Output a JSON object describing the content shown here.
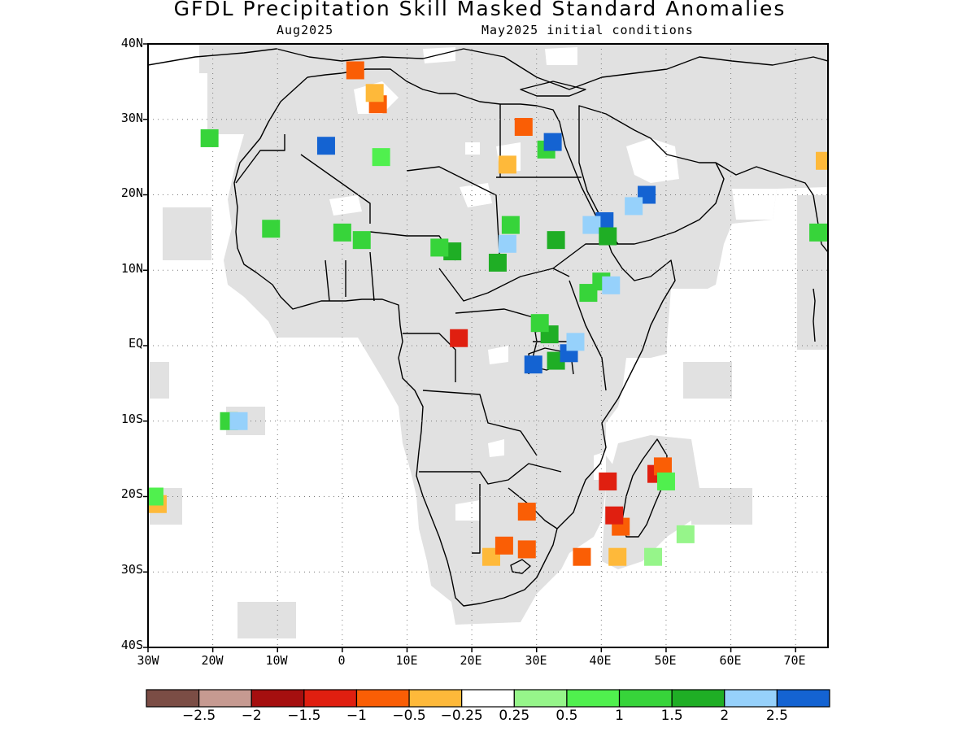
{
  "title": "GFDL Precipitation Skill Masked Standard Anomalies",
  "subtitle_left": "Aug2025",
  "subtitle_right": "May2025 initial conditions",
  "lat_labels": [
    "40N",
    "30N",
    "20N",
    "10N",
    "EQ",
    "10S",
    "20S",
    "30S",
    "40S"
  ],
  "lon_labels": [
    "30W",
    "20W",
    "10W",
    "0",
    "10E",
    "20E",
    "30E",
    "40E",
    "50E",
    "60E",
    "70E"
  ],
  "colorbar": {
    "colors": [
      "#7b4d45",
      "#c69a91",
      "#a50f0f",
      "#e01f10",
      "#fa5e05",
      "#feb93a",
      "#ffffff",
      "#96f58a",
      "#50f04e",
      "#37d43a",
      "#1fae25",
      "#96d1fb",
      "#1463d2"
    ],
    "labels": [
      "−2.5",
      "−2",
      "−1.5",
      "−1",
      "−0.5",
      "−0.25",
      "0.25",
      "0.5",
      "1",
      "1.5",
      "2",
      "2.5"
    ]
  },
  "map": {
    "land_mask_color": "#e1e1e1",
    "extent": {
      "lon": [
        -30,
        75
      ],
      "lat": [
        -40,
        40
      ]
    },
    "grid_lines": "dotted",
    "anomaly_patches": [
      {
        "name": "morocco-coast",
        "lon": 2,
        "lat": 36.5,
        "color": "#fa5e05"
      },
      {
        "name": "algeria-north",
        "lon": 5.5,
        "lat": 32,
        "color": "#fa5e05"
      },
      {
        "name": "algeria-north-2",
        "lon": 5,
        "lat": 33.5,
        "color": "#feb93a"
      },
      {
        "name": "algeria-south",
        "lon": 6,
        "lat": 25,
        "color": "#50f04e"
      },
      {
        "name": "sahara-west",
        "lon": -2.5,
        "lat": 26.5,
        "color": "#1463d2"
      },
      {
        "name": "canary",
        "lon": -20.5,
        "lat": 27.5,
        "color": "#37d43a"
      },
      {
        "name": "egypt-east",
        "lon": 31.5,
        "lat": 26,
        "color": "#37d43a"
      },
      {
        "name": "egypt-blue",
        "lon": 32.5,
        "lat": 27,
        "color": "#1463d2"
      },
      {
        "name": "egypt-orange",
        "lon": 28,
        "lat": 29,
        "color": "#fa5e05"
      },
      {
        "name": "red-sea-west",
        "lon": 25.5,
        "lat": 24,
        "color": "#feb93a"
      },
      {
        "name": "saudi",
        "lon": 47,
        "lat": 20,
        "color": "#1463d2"
      },
      {
        "name": "saudi-2",
        "lon": 45,
        "lat": 18.5,
        "color": "#96d1fb"
      },
      {
        "name": "eritrea-blue",
        "lon": 40.5,
        "lat": 16.5,
        "color": "#1463d2"
      },
      {
        "name": "eritrea-light",
        "lon": 38.5,
        "lat": 16,
        "color": "#96d1fb"
      },
      {
        "name": "eritrea-green",
        "lon": 41,
        "lat": 14.5,
        "color": "#1fae25"
      },
      {
        "name": "mali",
        "lon": 0,
        "lat": 15,
        "color": "#37d43a"
      },
      {
        "name": "niger",
        "lon": 3,
        "lat": 14,
        "color": "#37d43a"
      },
      {
        "name": "senegal",
        "lon": -11,
        "lat": 15.5,
        "color": "#37d43a"
      },
      {
        "name": "chad",
        "lon": 17,
        "lat": 12.5,
        "color": "#1fae25"
      },
      {
        "name": "chad-2",
        "lon": 15,
        "lat": 13,
        "color": "#37d43a"
      },
      {
        "name": "sudan-west",
        "lon": 24,
        "lat": 11,
        "color": "#1fae25"
      },
      {
        "name": "sudan-light",
        "lon": 25.5,
        "lat": 13.5,
        "color": "#96d1fb"
      },
      {
        "name": "sudan-green",
        "lon": 26,
        "lat": 16,
        "color": "#37d43a"
      },
      {
        "name": "sudan-green-2",
        "lon": 33,
        "lat": 14,
        "color": "#1fae25"
      },
      {
        "name": "ethiopia",
        "lon": 38,
        "lat": 7,
        "color": "#37d43a"
      },
      {
        "name": "ethiopia-2",
        "lon": 40,
        "lat": 8.5,
        "color": "#37d43a"
      },
      {
        "name": "ethiopia-light",
        "lon": 41.5,
        "lat": 8,
        "color": "#96d1fb"
      },
      {
        "name": "uganda",
        "lon": 32,
        "lat": 1.5,
        "color": "#1fae25"
      },
      {
        "name": "uganda-2",
        "lon": 30.5,
        "lat": 3,
        "color": "#37d43a"
      },
      {
        "name": "lake-victoria",
        "lon": 33,
        "lat": -2,
        "color": "#1fae25"
      },
      {
        "name": "kenya-blue",
        "lon": 35,
        "lat": -1,
        "color": "#1463d2"
      },
      {
        "name": "kenya-light",
        "lon": 36,
        "lat": 0.5,
        "color": "#96d1fb"
      },
      {
        "name": "rwanda-blue",
        "lon": 29.5,
        "lat": -2.5,
        "color": "#1463d2"
      },
      {
        "name": "cameroon",
        "lon": 18,
        "lat": 1,
        "color": "#e01f10"
      },
      {
        "name": "st-helena",
        "lon": -17.5,
        "lat": -10,
        "color": "#37d43a"
      },
      {
        "name": "st-helena-blue",
        "lon": -16,
        "lat": -10,
        "color": "#96d1fb"
      },
      {
        "name": "trindade",
        "lon": -28.5,
        "lat": -21,
        "color": "#feb93a"
      },
      {
        "name": "trindade-green",
        "lon": -29,
        "lat": -20,
        "color": "#50f04e"
      },
      {
        "name": "madagascar-north",
        "lon": 48.5,
        "lat": -17,
        "color": "#e01f10"
      },
      {
        "name": "madagascar-north-2",
        "lon": 49.5,
        "lat": -16,
        "color": "#fa5e05"
      },
      {
        "name": "madagascar-green",
        "lon": 50,
        "lat": -18,
        "color": "#50f04e"
      },
      {
        "name": "madagascar-west",
        "lon": 43,
        "lat": -24,
        "color": "#fa5e05"
      },
      {
        "name": "madagascar-west-2",
        "lon": 42,
        "lat": -22.5,
        "color": "#e01f10"
      },
      {
        "name": "madagascar-south",
        "lon": 42.5,
        "lat": -28,
        "color": "#feb93a"
      },
      {
        "name": "madagascar-red",
        "lon": 41,
        "lat": -18,
        "color": "#e01f10"
      },
      {
        "name": "indian-ocean-green",
        "lon": 48,
        "lat": -28,
        "color": "#96f58a"
      },
      {
        "name": "indian-ocean-green-2",
        "lon": 53,
        "lat": -25,
        "color": "#96f58a"
      },
      {
        "name": "south-africa",
        "lon": 23,
        "lat": -28,
        "color": "#feb93a"
      },
      {
        "name": "south-africa-2",
        "lon": 25,
        "lat": -26.5,
        "color": "#fa5e05"
      },
      {
        "name": "south-africa-3",
        "lon": 28.5,
        "lat": -27,
        "color": "#fa5e05"
      },
      {
        "name": "mozambique",
        "lon": 37,
        "lat": -28,
        "color": "#fa5e05"
      },
      {
        "name": "zim-border",
        "lon": 28.5,
        "lat": -22,
        "color": "#fa5e05"
      },
      {
        "name": "india-west",
        "lon": 73.5,
        "lat": 15,
        "color": "#37d43a"
      },
      {
        "name": "india-west-2",
        "lon": 74.5,
        "lat": 24.5,
        "color": "#feb93a"
      }
    ]
  }
}
